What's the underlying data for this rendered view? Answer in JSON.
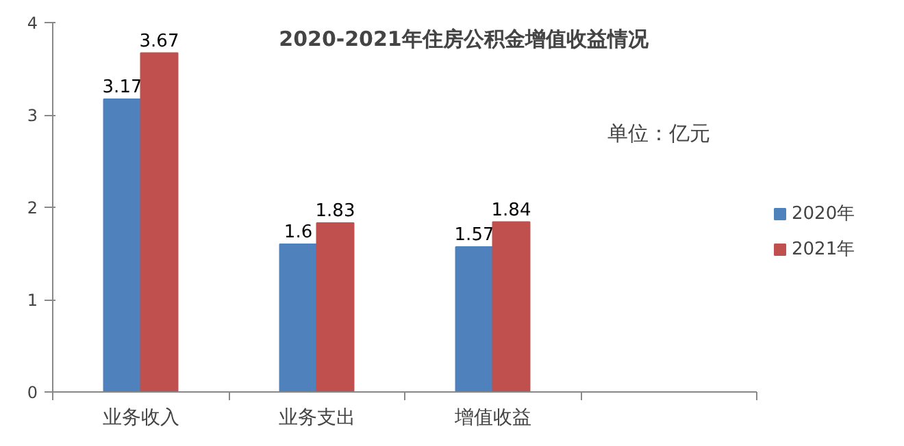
{
  "chart_data": {
    "type": "bar",
    "title": "2020-2021年住房公积金增值收益情况",
    "categories": [
      "业务收入",
      "业务支出",
      "增值收益",
      null
    ],
    "series": [
      {
        "name": "2020年",
        "color": "#4f81bd",
        "values": [
          3.17,
          1.6,
          1.57,
          null
        ]
      },
      {
        "name": "2021年",
        "color": "#c0504d",
        "values": [
          3.67,
          1.83,
          1.84,
          null
        ]
      }
    ],
    "ylim": [
      0,
      4
    ],
    "yticks": [
      0,
      1,
      2,
      3,
      4
    ],
    "grid": false,
    "legend": "right",
    "data_labels": true,
    "annotations": [
      "单位：亿元"
    ]
  }
}
